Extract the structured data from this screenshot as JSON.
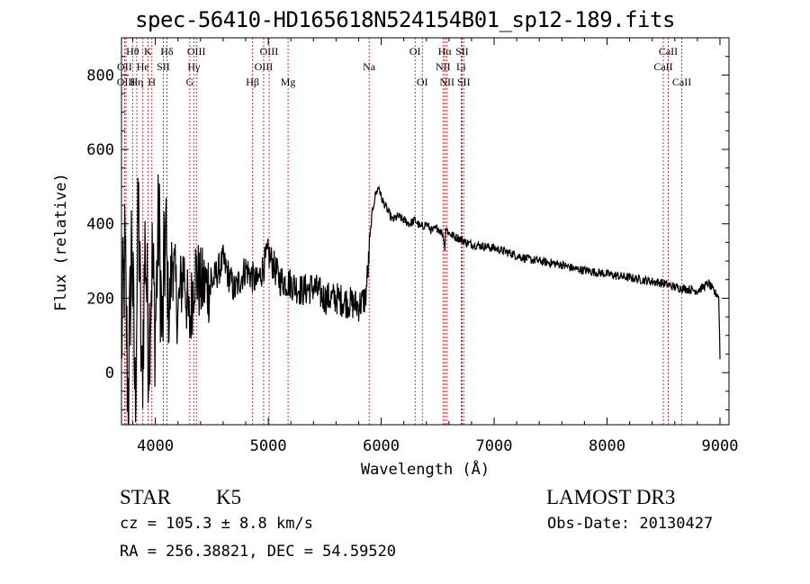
{
  "chart_data": {
    "type": "line",
    "title": "spec-56410-HD165618N524154B01_sp12-189.fits",
    "xlabel": "Wavelength (Å)",
    "ylabel": "Flux (relative)",
    "xlim": [
      3700,
      9080
    ],
    "ylim": [
      -140,
      900
    ],
    "xticks": [
      4000,
      5000,
      6000,
      7000,
      8000,
      9000
    ],
    "yticks": [
      0,
      200,
      400,
      600,
      800
    ],
    "xtick_labels": [
      "4000",
      "5000",
      "6000",
      "7000",
      "8000",
      "9000"
    ],
    "ytick_labels": [
      "0",
      "200",
      "400",
      "600",
      "800"
    ],
    "series": [
      {
        "name": "flux",
        "x": [
          3700,
          3730,
          3760,
          3790,
          3820,
          3850,
          3880,
          3910,
          3940,
          3970,
          4000,
          4030,
          4060,
          4090,
          4120,
          4150,
          4200,
          4250,
          4300,
          4350,
          4400,
          4500,
          4600,
          4700,
          4800,
          4900,
          5000,
          5100,
          5200,
          5300,
          5400,
          5500,
          5600,
          5700,
          5800,
          5860,
          5890,
          5900,
          5920,
          5950,
          5980,
          6000,
          6050,
          6100,
          6150,
          6200,
          6250,
          6300,
          6350,
          6400,
          6450,
          6500,
          6550,
          6563,
          6570,
          6600,
          6650,
          6700,
          6750,
          6800,
          6900,
          7000,
          7100,
          7200,
          7300,
          7400,
          7500,
          7600,
          7700,
          7800,
          7900,
          8000,
          8100,
          8200,
          8300,
          8400,
          8500,
          8600,
          8700,
          8800,
          8850,
          8900,
          8950,
          8980,
          8990,
          9000
        ],
        "y": [
          80,
          320,
          -100,
          380,
          -80,
          450,
          -60,
          360,
          60,
          300,
          120,
          420,
          90,
          380,
          140,
          320,
          160,
          290,
          120,
          280,
          230,
          240,
          300,
          220,
          280,
          240,
          320,
          250,
          240,
          220,
          230,
          200,
          200,
          190,
          180,
          200,
          300,
          360,
          430,
          480,
          500,
          470,
          440,
          410,
          420,
          410,
          400,
          410,
          390,
          400,
          380,
          390,
          370,
          330,
          390,
          375,
          365,
          360,
          350,
          345,
          340,
          335,
          325,
          315,
          305,
          300,
          295,
          290,
          280,
          275,
          270,
          265,
          260,
          255,
          250,
          245,
          240,
          230,
          225,
          220,
          230,
          240,
          215,
          210,
          200,
          40
        ]
      }
    ],
    "line_markers": [
      {
        "label": "Hθ",
        "x": 3798,
        "row": 1
      },
      {
        "label": "OII",
        "x": 3727,
        "row": 2
      },
      {
        "label": "OIII",
        "x": 3740,
        "row": 3
      },
      {
        "label": "He",
        "x": 3889,
        "row": 2
      },
      {
        "label": "K",
        "x": 3934,
        "row": 1
      },
      {
        "label": "Hη",
        "x": 3835,
        "row": 3
      },
      {
        "label": "Hδ",
        "x": 4102,
        "row": 1
      },
      {
        "label": "SII",
        "x": 4070,
        "row": 2
      },
      {
        "label": "H",
        "x": 3969,
        "row": 3
      },
      {
        "label": "OIII",
        "x": 4363,
        "row": 1
      },
      {
        "label": "Hγ",
        "x": 4340,
        "row": 2
      },
      {
        "label": "G",
        "x": 4305,
        "row": 3
      },
      {
        "label": "OIII",
        "x": 5007,
        "row": 1
      },
      {
        "label": "OIII",
        "x": 4959,
        "row": 2
      },
      {
        "label": "Hβ",
        "x": 4861,
        "row": 3
      },
      {
        "label": "Mg",
        "x": 5175,
        "row": 3
      },
      {
        "label": "Na",
        "x": 5893,
        "row": 2
      },
      {
        "label": "OI",
        "x": 6300,
        "row": 1
      },
      {
        "label": "OI",
        "x": 6364,
        "row": 3
      },
      {
        "label": "Hα",
        "x": 6563,
        "row": 1
      },
      {
        "label": "SII",
        "x": 6716,
        "row": 1
      },
      {
        "label": "NII",
        "x": 6548,
        "row": 2
      },
      {
        "label": "Li",
        "x": 6708,
        "row": 2
      },
      {
        "label": "NII",
        "x": 6583,
        "row": 3
      },
      {
        "label": "SII",
        "x": 6731,
        "row": 3
      },
      {
        "label": "CaII",
        "x": 8542,
        "row": 1
      },
      {
        "label": "CaII",
        "x": 8498,
        "row": 2
      },
      {
        "label": "CaII",
        "x": 8662,
        "row": 3
      }
    ]
  },
  "footer": {
    "object_class": "STAR",
    "subclass": "K5",
    "survey": "LAMOST DR3",
    "cz": "cz = 105.3 ± 8.8 km/s",
    "obs_date": "Obs-Date: 20130427",
    "ra_dec": "RA = 256.38821, DEC =  54.59520"
  },
  "colors": {
    "line": "#000000",
    "marker": "#c00000",
    "axes": "#000000"
  }
}
